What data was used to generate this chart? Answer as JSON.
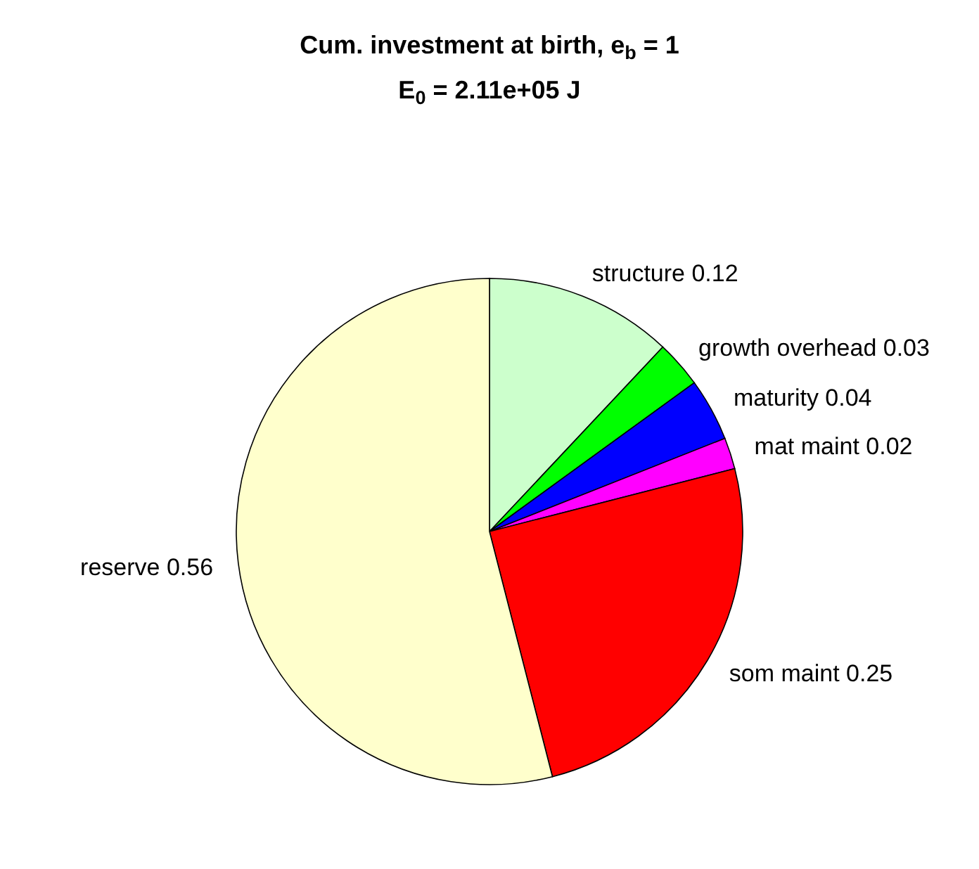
{
  "chart_data": {
    "type": "pie",
    "title": "Cum. investment at birth, e$_{b}$ = 1",
    "subtitle": "E$_{0}$ = 2.11e+05 J",
    "categories": [
      "structure 0.12",
      "growth overhead 0.03",
      "maturity 0.04",
      "mat maint 0.02",
      "som maint 0.25",
      "reserve 0.56"
    ],
    "values": [
      12,
      3,
      4,
      2,
      25,
      54
    ],
    "colors": [
      "#ccffcc",
      "#00ff00",
      "#0000ff",
      "#ff00ff",
      "#ff0000",
      "#ffffcc"
    ]
  }
}
